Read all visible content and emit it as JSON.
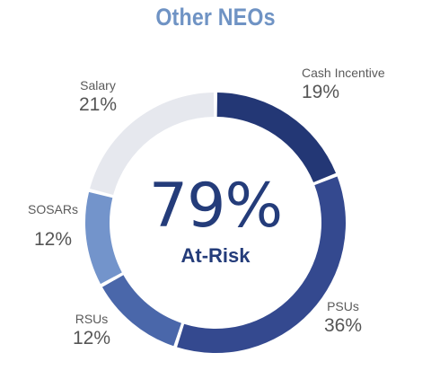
{
  "chart_data": {
    "type": "pie",
    "title": "Other NEOs",
    "center_value": "79%",
    "center_label": "At-Risk",
    "slices": [
      {
        "name": "Cash Incentive",
        "value": 19,
        "value_label": "19%",
        "color": "#233775"
      },
      {
        "name": "PSUs",
        "value": 36,
        "value_label": "36%",
        "color": "#34498f"
      },
      {
        "name": "RSUs",
        "value": 12,
        "value_label": "12%",
        "color": "#4a67aa"
      },
      {
        "name": "SOSARs",
        "value": 12,
        "value_label": "12%",
        "color": "#7394cb"
      },
      {
        "name": "Salary",
        "value": 21,
        "value_label": "21%",
        "color": "#e6e8ee"
      }
    ]
  }
}
